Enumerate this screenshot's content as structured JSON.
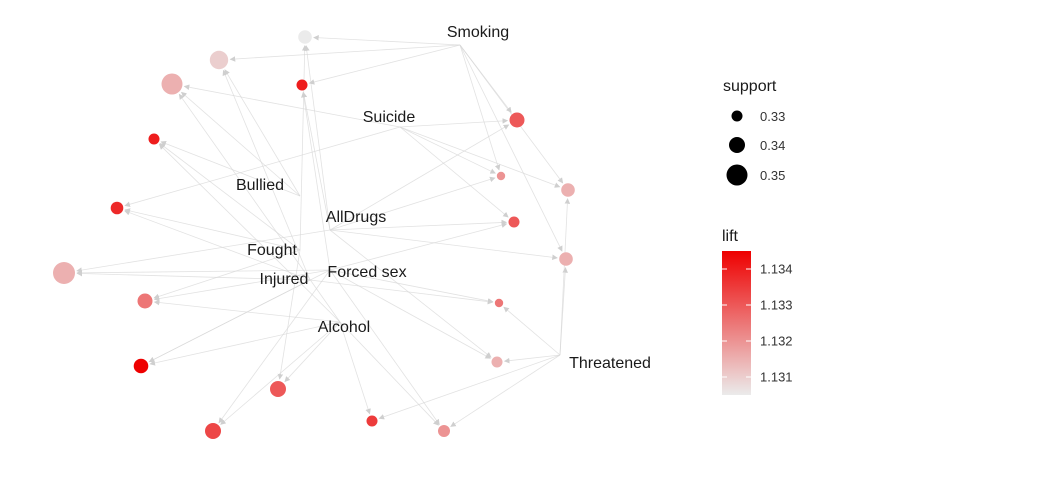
{
  "graph": {
    "items": [
      {
        "id": "smoking",
        "label": "Smoking"
      },
      {
        "id": "suicide",
        "label": "Suicide"
      },
      {
        "id": "bullied",
        "label": "Bullied"
      },
      {
        "id": "alldrugs",
        "label": "AllDrugs"
      },
      {
        "id": "fought",
        "label": "Fought"
      },
      {
        "id": "forcedsex",
        "label": "Forced sex"
      },
      {
        "id": "injured",
        "label": "Injured"
      },
      {
        "id": "alcohol",
        "label": "Alcohol"
      },
      {
        "id": "threatened",
        "label": "Threatened"
      }
    ],
    "rules": [
      {
        "id": "r1",
        "support": 0.335,
        "lift": 1.1305,
        "from": [
          "smoking",
          "alldrugs",
          "fought"
        ]
      },
      {
        "id": "r2",
        "support": 0.345,
        "lift": 1.131,
        "from": [
          "smoking",
          "bullied",
          "injured"
        ]
      },
      {
        "id": "r3",
        "support": 0.35,
        "lift": 1.1315,
        "from": [
          "suicide",
          "bullied",
          "alcohol"
        ]
      },
      {
        "id": "r4",
        "support": 0.33,
        "lift": 1.134,
        "from": [
          "smoking",
          "alldrugs",
          "forcedsex"
        ]
      },
      {
        "id": "r5",
        "support": 0.33,
        "lift": 1.134,
        "from": [
          "bullied",
          "fought",
          "alcohol"
        ]
      },
      {
        "id": "r6",
        "support": 0.333,
        "lift": 1.1338,
        "from": [
          "suicide",
          "fought",
          "injured"
        ]
      },
      {
        "id": "r7",
        "support": 0.352,
        "lift": 1.1315,
        "from": [
          "alldrugs",
          "forcedsex",
          "injured"
        ]
      },
      {
        "id": "r8",
        "support": 0.338,
        "lift": 1.1325,
        "from": [
          "fought",
          "alcohol",
          "forcedsex"
        ]
      },
      {
        "id": "r9",
        "support": 0.337,
        "lift": 1.1345,
        "from": [
          "alcohol",
          "injured",
          "forcedsex"
        ]
      },
      {
        "id": "r10",
        "support": 0.34,
        "lift": 1.133,
        "from": [
          "alcohol",
          "fought"
        ]
      },
      {
        "id": "r11",
        "support": 0.34,
        "lift": 1.1333,
        "from": [
          "forcedsex",
          "alcohol"
        ]
      },
      {
        "id": "r12",
        "support": 0.33,
        "lift": 1.1335,
        "from": [
          "alcohol",
          "threatened"
        ]
      },
      {
        "id": "r13",
        "support": 0.332,
        "lift": 1.132,
        "from": [
          "threatened",
          "alcohol",
          "forcedsex"
        ]
      },
      {
        "id": "r14",
        "support": 0.33,
        "lift": 1.1315,
        "from": [
          "threatened",
          "forcedsex",
          "alldrugs"
        ]
      },
      {
        "id": "r15",
        "support": 0.325,
        "lift": 1.1325,
        "from": [
          "forcedsex",
          "injured",
          "threatened"
        ]
      },
      {
        "id": "r16",
        "support": 0.335,
        "lift": 1.1315,
        "from": [
          "threatened",
          "smoking",
          "alldrugs"
        ]
      },
      {
        "id": "r17",
        "support": 0.33,
        "lift": 1.133,
        "from": [
          "alldrugs",
          "suicide",
          "forcedsex"
        ]
      },
      {
        "id": "r18",
        "support": 0.325,
        "lift": 1.132,
        "from": [
          "smoking",
          "alldrugs",
          "suicide"
        ]
      },
      {
        "id": "r19",
        "support": 0.335,
        "lift": 1.1315,
        "from": [
          "smoking",
          "threatened",
          "suicide"
        ]
      },
      {
        "id": "r20",
        "support": 0.338,
        "lift": 1.133,
        "from": [
          "smoking",
          "suicide",
          "alldrugs"
        ]
      }
    ]
  },
  "legend": {
    "support": {
      "title": "support",
      "entries": [
        {
          "label": "0.33",
          "value": 0.33
        },
        {
          "label": "0.34",
          "value": 0.34
        },
        {
          "label": "0.35",
          "value": 0.35
        }
      ]
    },
    "lift": {
      "title": "lift",
      "min": 1.1305,
      "max": 1.1345,
      "ticks": [
        {
          "label": "1.134",
          "value": 1.134
        },
        {
          "label": "1.133",
          "value": 1.133
        },
        {
          "label": "1.132",
          "value": 1.132
        },
        {
          "label": "1.131",
          "value": 1.131
        }
      ],
      "color_low": "#ebebeb",
      "color_high": "#ee0000"
    }
  },
  "colors": {
    "edge": "#d6d6d6",
    "background": "#ffffff"
  }
}
